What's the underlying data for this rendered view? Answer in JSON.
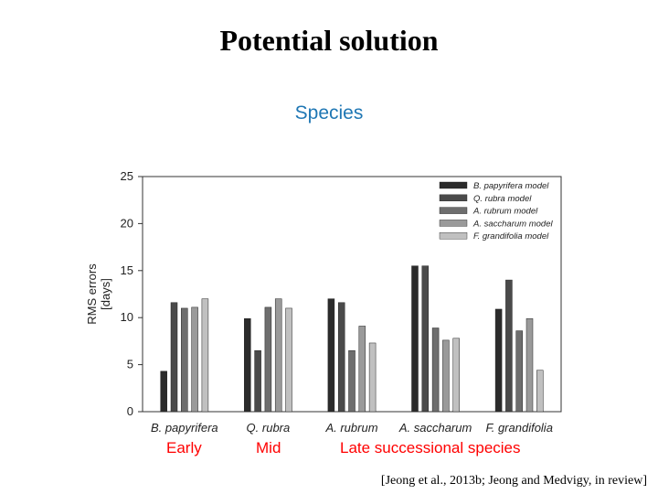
{
  "slide": {
    "title": "Potential solution",
    "subtitle": "Species",
    "notes": [
      "Early",
      "Mid",
      "Late successional species"
    ],
    "citation": "[Jeong et al., 2013b; Jeong and Medvigy,  in review]"
  },
  "colors": {
    "series": [
      "#2b2b2b",
      "#4a4a4a",
      "#6e6e6e",
      "#9a9a9a",
      "#c0c0c0"
    ],
    "subtitle": "#1f77b4",
    "notes": "#ff0000"
  },
  "chart_data": {
    "type": "bar",
    "categories": [
      "B. papyrifera",
      "Q. rubra",
      "A. rubrum",
      "A. saccharum",
      "F. grandifolia"
    ],
    "series": [
      {
        "name": "B. papyrifera model",
        "values": [
          4.3,
          9.9,
          12.0,
          15.5,
          10.9
        ]
      },
      {
        "name": "Q. rubra model",
        "values": [
          11.6,
          6.5,
          11.6,
          15.5,
          14.0
        ]
      },
      {
        "name": "A. rubrum model",
        "values": [
          11.0,
          11.1,
          6.5,
          8.9,
          8.6
        ]
      },
      {
        "name": "A. saccharum model",
        "values": [
          11.1,
          12.0,
          9.1,
          7.6,
          9.9
        ]
      },
      {
        "name": "F. grandifolia model",
        "values": [
          12.0,
          11.0,
          7.3,
          7.8,
          4.4
        ]
      }
    ],
    "ylabel": "RMS errors [days]",
    "ylim": [
      0,
      25
    ],
    "yticks": [
      0,
      5,
      10,
      15,
      20,
      25
    ],
    "legend_position": "top-right",
    "grid": false
  }
}
